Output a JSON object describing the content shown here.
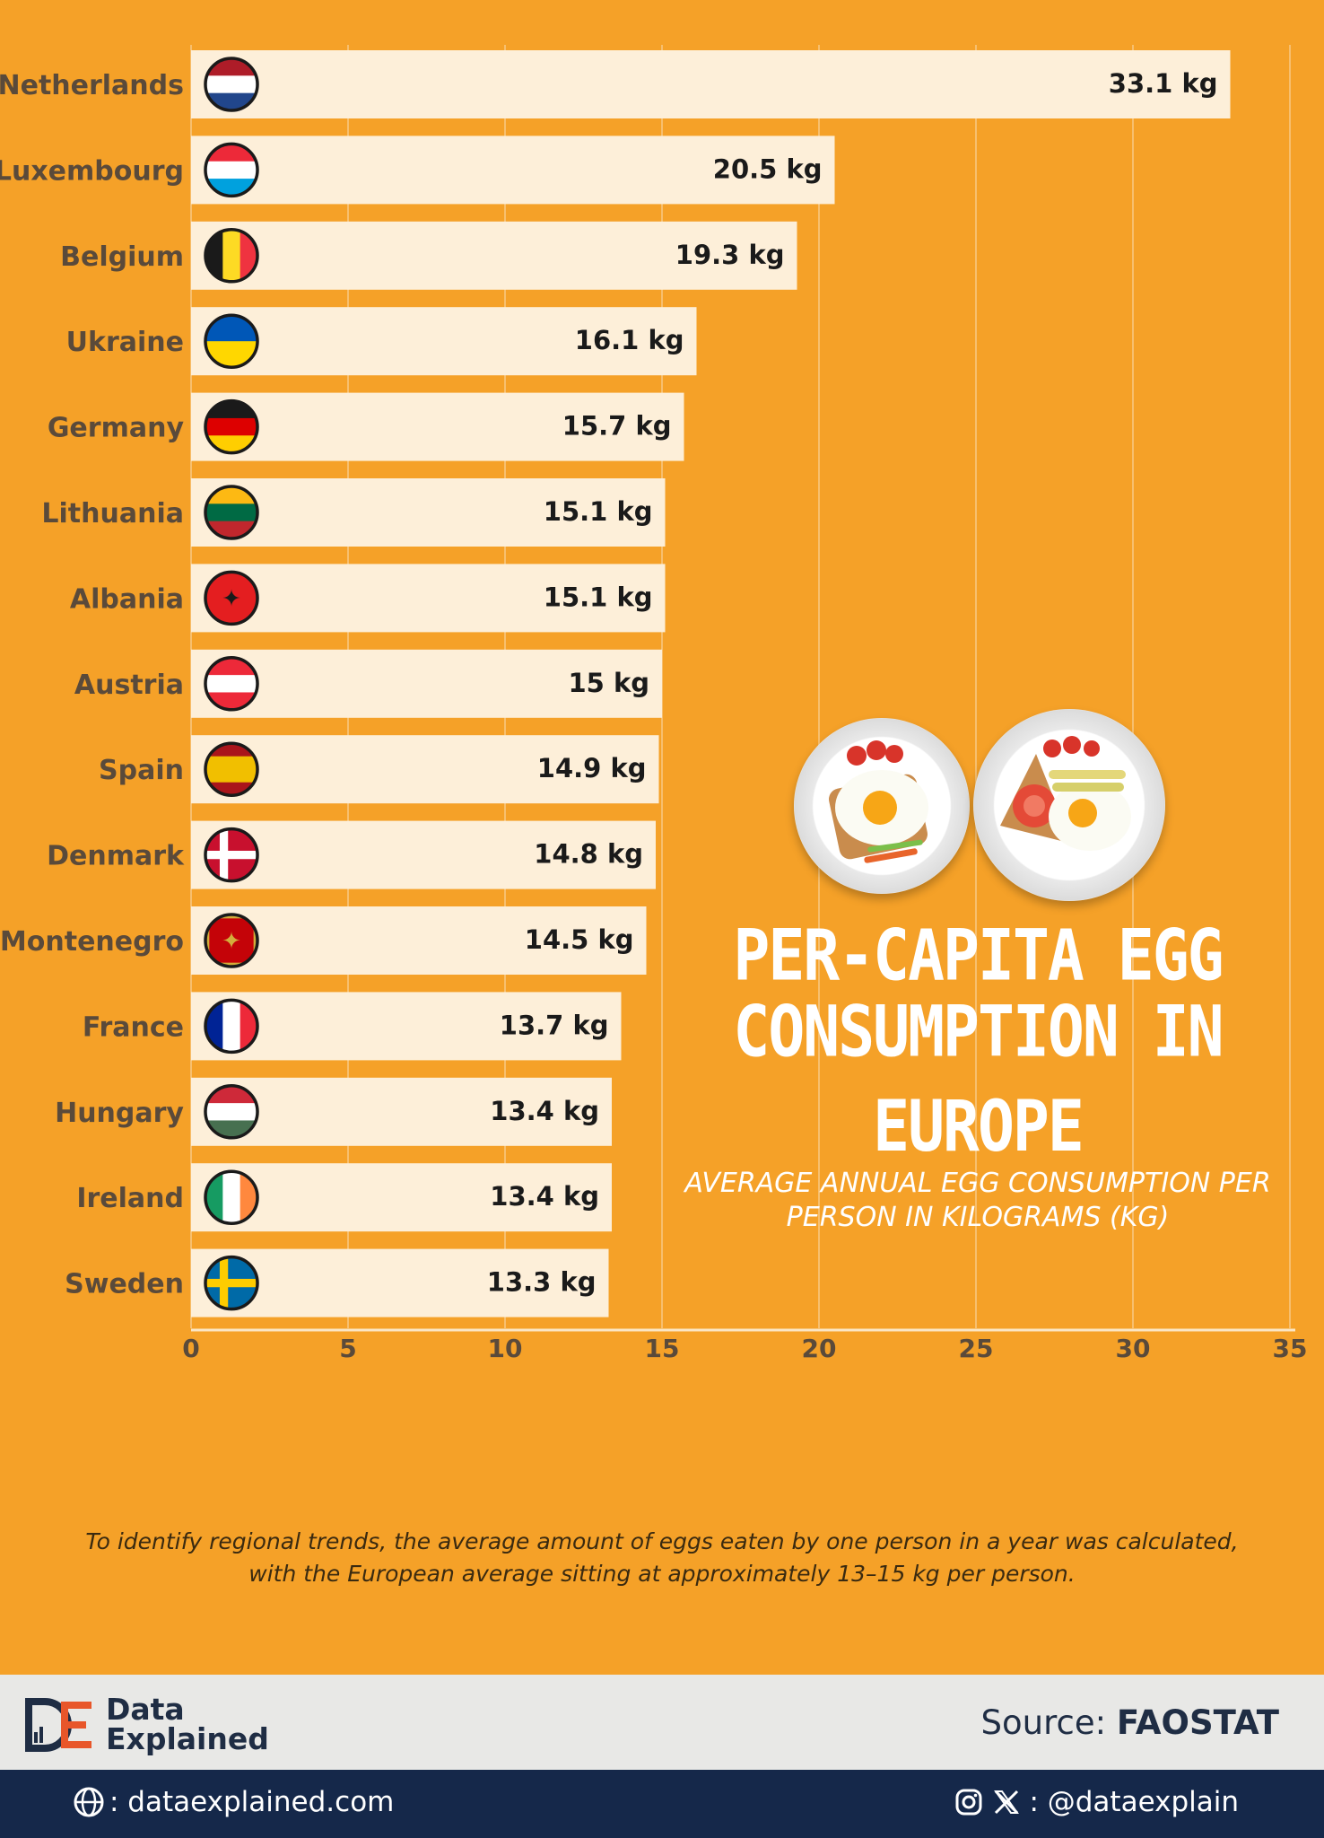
{
  "chart_data": {
    "type": "bar",
    "orientation": "horizontal",
    "title_lines": [
      "PER-CAPITA EGG",
      "CONSUMPTION IN EUROPE"
    ],
    "subtitle_lines": [
      "AVERAGE ANNUAL EGG CONSUMPTION PER",
      "PERSON IN KILOGRAMS (KG)"
    ],
    "categories": [
      "Netherlands",
      "Luxembourg",
      "Belgium",
      "Ukraine",
      "Germany",
      "Lithuania",
      "Albania",
      "Austria",
      "Spain",
      "Denmark",
      "Montenegro",
      "France",
      "Hungary",
      "Ireland",
      "Sweden"
    ],
    "values": [
      33.1,
      20.5,
      19.3,
      16.1,
      15.7,
      15.1,
      15.1,
      15,
      14.9,
      14.8,
      14.5,
      13.7,
      13.4,
      13.4,
      13.3
    ],
    "value_labels": [
      "33.1 kg",
      "20.5 kg",
      "19.3 kg",
      "16.1 kg",
      "15.7 kg",
      "15.1 kg",
      "15.1 kg",
      "15 kg",
      "14.9 kg",
      "14.8 kg",
      "14.5 kg",
      "13.7 kg",
      "13.4 kg",
      "13.4 kg",
      "13.3 kg"
    ],
    "xlim": [
      0,
      35
    ],
    "xticks": [
      "0",
      "5",
      "10",
      "15",
      "20",
      "25",
      "30",
      "35"
    ],
    "grid": true,
    "bar_color": "#FDEFD9",
    "background_color": "#F5A128"
  },
  "flags": [
    "netherlands-flag-icon",
    "luxembourg-flag-icon",
    "belgium-flag-icon",
    "ukraine-flag-icon",
    "germany-flag-icon",
    "lithuania-flag-icon",
    "albania-flag-icon",
    "austria-flag-icon",
    "spain-flag-icon",
    "denmark-flag-icon",
    "montenegro-flag-icon",
    "france-flag-icon",
    "hungary-flag-icon",
    "ireland-flag-icon",
    "sweden-flag-icon"
  ],
  "note": {
    "line1": "To identify regional trends, the average amount of eggs eaten by one person in a year was calculated,",
    "line2": "with the European average sitting at approximately 13–15 kg per person."
  },
  "brand": {
    "name_line1": "Data",
    "name_line2": "Explained",
    "source_prefix": "Source: ",
    "source_name": "FAOSTAT"
  },
  "footer": {
    "website": ": dataexplained.com",
    "social": ": @dataexplain"
  },
  "colors": {
    "accent_orange": "#F5A128",
    "navy": "#15284A",
    "logo_orange": "#E8562A"
  }
}
